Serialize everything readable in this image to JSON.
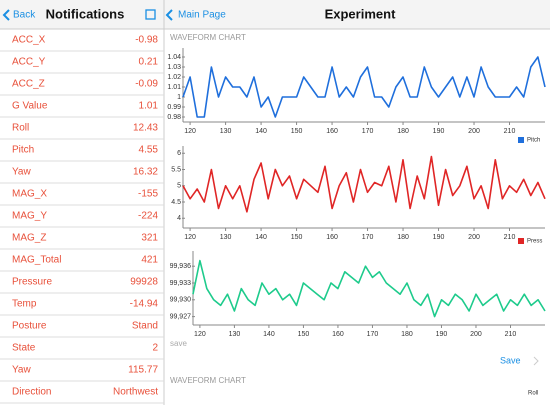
{
  "sidebar": {
    "back": "Back",
    "title": "Notifications",
    "rows": [
      [
        "ACC_X",
        "-0.98"
      ],
      [
        "ACC_Y",
        "0.21"
      ],
      [
        "ACC_Z",
        "-0.09"
      ],
      [
        "G Value",
        "1.01"
      ],
      [
        "Roll",
        "12.43"
      ],
      [
        "Pitch",
        "4.55"
      ],
      [
        "Yaw",
        "16.32"
      ],
      [
        "MAG_X",
        "-155"
      ],
      [
        "MAG_Y",
        "-224"
      ],
      [
        "MAG_Z",
        "321"
      ],
      [
        "MAG_Total",
        "421"
      ],
      [
        "Pressure",
        "99928"
      ],
      [
        "Temp",
        "-14.94"
      ],
      [
        "Posture",
        "Stand"
      ],
      [
        "State",
        "2"
      ],
      [
        "Yaw",
        "115.77"
      ],
      [
        "Direction",
        "Northwest"
      ]
    ]
  },
  "main": {
    "back": "Main Page",
    "title": "Experiment",
    "section": "WAVEFORM CHART",
    "save_label": "save",
    "save_button": "Save",
    "section2": "WAVEFORM CHART",
    "legend2": "Roll",
    "charts": [
      {
        "type": "line",
        "x": [
          118,
          120,
          122,
          124,
          126,
          128,
          130,
          132,
          134,
          136,
          138,
          140,
          142,
          144,
          146,
          148,
          150,
          152,
          154,
          156,
          158,
          160,
          162,
          164,
          166,
          168,
          170,
          172,
          174,
          176,
          178,
          180,
          182,
          184,
          186,
          188,
          190,
          192,
          194,
          196,
          198,
          200,
          202,
          204,
          206,
          208,
          210,
          212,
          214,
          216,
          218,
          220
        ],
        "xlim": [
          118,
          220
        ],
        "xticks": [
          120,
          130,
          140,
          150,
          160,
          170,
          180,
          190,
          200,
          210
        ],
        "ylim": [
          0.975,
          1.045
        ],
        "yticks": [
          0.98,
          0.99,
          1,
          1.01,
          1.02,
          1.03,
          1.04
        ],
        "series": {
          "name": "Pitch",
          "color": "#1f6fdc",
          "values": [
            1.0,
            1.02,
            0.98,
            0.98,
            1.03,
            1.0,
            1.02,
            1.01,
            1.01,
            1.0,
            1.02,
            0.99,
            1.0,
            0.98,
            1.0,
            1.0,
            1.0,
            1.02,
            1.01,
            1.0,
            1.0,
            1.03,
            1.0,
            1.01,
            1.0,
            1.02,
            1.03,
            1.0,
            1.0,
            0.99,
            1.01,
            1.02,
            1.0,
            1.0,
            1.03,
            1.01,
            1.0,
            1.01,
            1.02,
            1.0,
            1.02,
            1.0,
            1.03,
            1.01,
            1.0,
            1.0,
            1.0,
            1.01,
            1.0,
            1.03,
            1.04,
            1.01
          ]
        }
      },
      {
        "type": "line",
        "x": [
          118,
          120,
          122,
          124,
          126,
          128,
          130,
          132,
          134,
          136,
          138,
          140,
          142,
          144,
          146,
          148,
          150,
          152,
          154,
          156,
          158,
          160,
          162,
          164,
          166,
          168,
          170,
          172,
          174,
          176,
          178,
          180,
          182,
          184,
          186,
          188,
          190,
          192,
          194,
          196,
          198,
          200,
          202,
          204,
          206,
          208,
          210,
          212,
          214,
          216,
          218,
          220
        ],
        "xlim": [
          118,
          220
        ],
        "xticks": [
          120,
          130,
          140,
          150,
          160,
          170,
          180,
          190,
          200,
          210
        ],
        "ylim": [
          3.7,
          6.1
        ],
        "yticks": [
          4,
          4.5,
          5,
          5.5,
          6
        ],
        "series": {
          "name": "Press",
          "color": "#e02626",
          "values": [
            5.0,
            4.6,
            4.9,
            4.5,
            5.5,
            4.3,
            5.0,
            4.6,
            5.0,
            4.2,
            5.2,
            5.7,
            4.6,
            5.5,
            5.0,
            5.3,
            4.6,
            5.2,
            5.0,
            4.8,
            5.6,
            4.3,
            5.0,
            5.4,
            4.5,
            5.5,
            4.8,
            5.1,
            5.0,
            5.6,
            4.5,
            5.8,
            4.3,
            5.3,
            4.6,
            5.9,
            4.4,
            5.5,
            4.7,
            5.0,
            5.6,
            4.6,
            5.0,
            4.3,
            5.8,
            4.6,
            5.0,
            4.8,
            5.2,
            4.7,
            5.1,
            4.6
          ]
        }
      },
      {
        "type": "line",
        "x": [
          118,
          120,
          122,
          124,
          126,
          128,
          130,
          132,
          134,
          136,
          138,
          140,
          142,
          144,
          146,
          148,
          150,
          152,
          154,
          156,
          158,
          160,
          162,
          164,
          166,
          168,
          170,
          172,
          174,
          176,
          178,
          180,
          182,
          184,
          186,
          188,
          190,
          192,
          194,
          196,
          198,
          200,
          202,
          204,
          206,
          208,
          210,
          212,
          214,
          216,
          218,
          220
        ],
        "xlim": [
          118,
          220
        ],
        "xticks": [
          120,
          130,
          140,
          150,
          160,
          170,
          180,
          190,
          200,
          210
        ],
        "ylim": [
          99925.5,
          99938
        ],
        "yticks": [
          {
            "value": 99927,
            "label": "99,927"
          },
          {
            "value": 99930,
            "label": "99,930"
          },
          {
            "value": 99933,
            "label": "99,933"
          },
          {
            "value": 99936,
            "label": "99,936"
          }
        ],
        "series": {
          "color": "#1ecb8c",
          "values": [
            99931,
            99937,
            99932,
            99930,
            99929,
            99931,
            99928,
            99932,
            99930,
            99929,
            99933,
            99931,
            99932,
            99930,
            99931,
            99929,
            99933,
            99932,
            99931,
            99930,
            99933,
            99932,
            99935,
            99934,
            99933,
            99936,
            99934,
            99935,
            99933,
            99932,
            99931,
            99933,
            99930,
            99929,
            99931,
            99927,
            99930,
            99929,
            99931,
            99930,
            99928,
            99931,
            99929,
            99930,
            99931,
            99928,
            99930,
            99929,
            99931,
            99929,
            99930,
            99928
          ]
        }
      }
    ]
  }
}
